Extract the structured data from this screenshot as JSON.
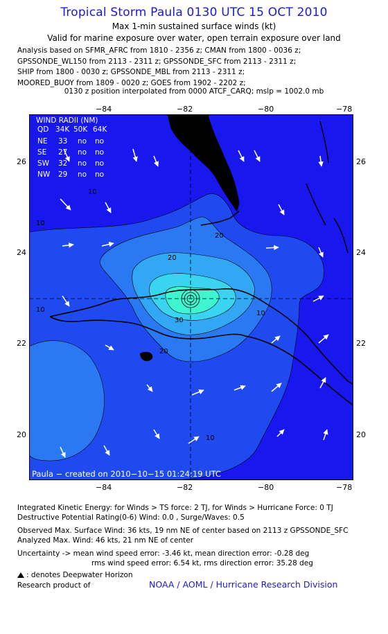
{
  "header": {
    "title": "Tropical Storm Paula 0130 UTC 15 OCT 2010",
    "subtitle1": "Max 1-min sustained surface winds (kt)",
    "subtitle2": "Valid for marine exposure over water, open terrain exposure over land",
    "analysis_lines": [
      "Analysis based on SFMR_AFRC from 1810 - 2356 z; CMAN from 1800 - 0036 z;",
      "GPSSONDE_WL150 from 2113 - 2311 z; GPSSONDE_SFC from 2113 - 2311 z;",
      "SHIP from 1800 - 0030 z; GPSSONDE_MBL from 2113 - 2311 z;",
      "MOORED_BUOY from 1809 - 0020 z; GOES from 1902 - 2202 z;"
    ],
    "position_line": "0130 z position interpolated from 0000 ATCF_CARQ; mslp = 1002.0 mb"
  },
  "map": {
    "lon_ticks": [
      "−84",
      "−82",
      "−80",
      "−78"
    ],
    "lat_ticks": [
      "26",
      "24",
      "22",
      "20"
    ],
    "lon_range": [
      -85.5,
      -77.5
    ],
    "lat_range": [
      19,
      27.1
    ],
    "center": {
      "lon": -81.8,
      "lat": 23.0
    },
    "contour_labels": [
      "10",
      "10",
      "10",
      "10",
      "20",
      "20",
      "20",
      "30",
      "10",
      "10"
    ],
    "wind_radii": {
      "title": "WIND RADII (NM)",
      "header": [
        "QD",
        "34K",
        "50K",
        "64K"
      ],
      "rows": [
        [
          "NE",
          "33",
          "no",
          "no"
        ],
        [
          "SE",
          "27",
          "no",
          "no"
        ],
        [
          "SW",
          "32",
          "no",
          "no"
        ],
        [
          "NW",
          "29",
          "no",
          "no"
        ]
      ]
    },
    "footer": "Paula − created on 2010−10−15 01:24:19 UTC",
    "colors": {
      "ocean_low": "#1717ee",
      "band_10": "#1f4af0",
      "band_20": "#2a78f2",
      "band_30": "#32a8f5",
      "band_40": "#38d4f0",
      "core": "#3ef5d0",
      "land": "#000000"
    }
  },
  "footer": {
    "ike": "Integrated Kinetic Energy:  for Winds > TS force: 2 TJ,  for Winds > Hurricane Force: 0 TJ",
    "dpr": "Destructive Potential Rating(0-6)   Wind: 0.0 , Surge/Waves: 0.5",
    "observed": "Observed Max. Surface Wind: 36 kts, 19 nm NE of center based on 2113 z GPSSONDE_SFC",
    "analyzed": "Analyzed Max. Wind: 46 kts, 21 nm NE of center",
    "uncert1": "Uncertainty -> mean wind speed error:  -3.46 kt,    mean direction error:  -0.28 deg",
    "uncert2": "rms wind speed error: 6.54 kt,    rms direction error: 35.28 deg",
    "deepwater": ": denotes Deepwater Horizon",
    "research": "Research product of",
    "org": "NOAA / AOML / Hurricane Research Division"
  }
}
